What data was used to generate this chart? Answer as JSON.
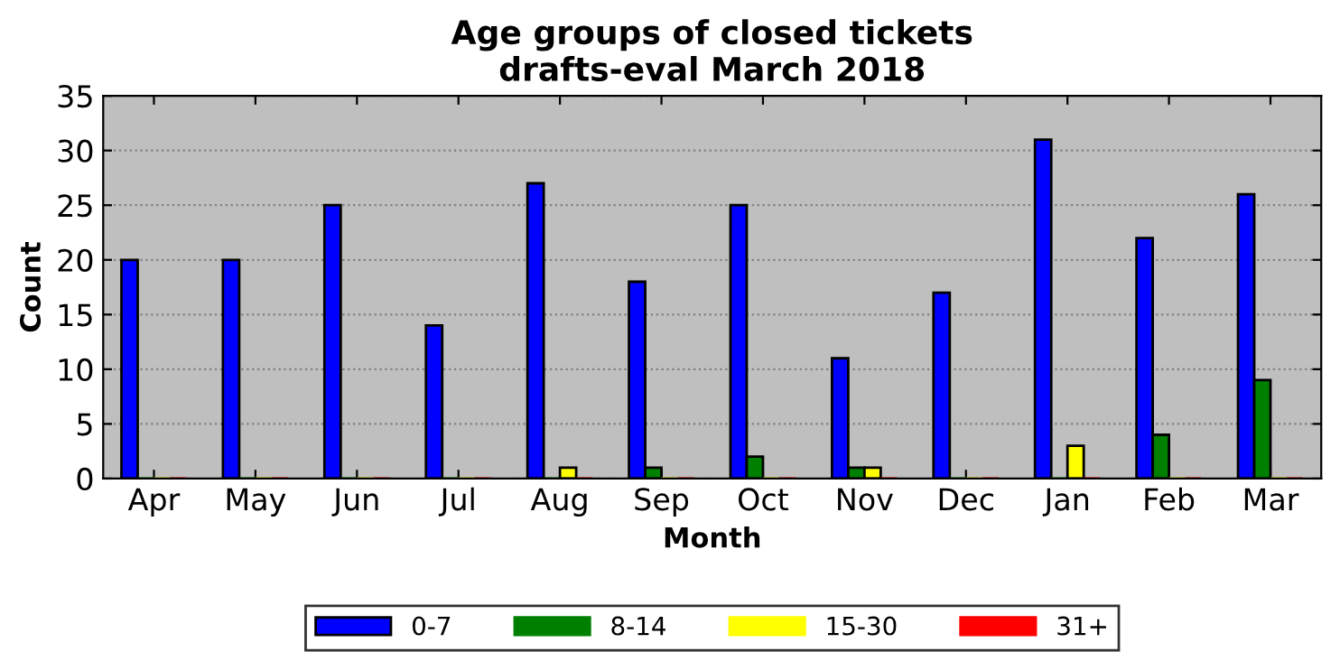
{
  "chart_data": {
    "type": "bar",
    "title": "Age groups of closed tickets\ndrafts-eval March 2018",
    "xlabel": "Month",
    "ylabel": "Count",
    "categories": [
      "Apr",
      "May",
      "Jun",
      "Jul",
      "Aug",
      "Sep",
      "Oct",
      "Nov",
      "Dec",
      "Jan",
      "Feb",
      "Mar"
    ],
    "series": [
      {
        "name": "0-7",
        "color": "#0000ff",
        "values": [
          20,
          20,
          25,
          14,
          27,
          18,
          25,
          11,
          17,
          31,
          22,
          26
        ]
      },
      {
        "name": "8-14",
        "color": "#008000",
        "values": [
          0,
          0,
          0,
          0,
          0,
          1,
          2,
          1,
          0,
          0,
          4,
          9
        ]
      },
      {
        "name": "15-30",
        "color": "#ffff00",
        "values": [
          0,
          0,
          0,
          0,
          1,
          0,
          0,
          1,
          0,
          3,
          0,
          0
        ]
      },
      {
        "name": "31+",
        "color": "#ff0000",
        "values": [
          0,
          0,
          0,
          0,
          0,
          0,
          0,
          0,
          0,
          0,
          0,
          0
        ]
      }
    ],
    "ylim": [
      0,
      35
    ],
    "yticks": [
      0,
      5,
      10,
      15,
      20,
      25,
      30,
      35
    ],
    "grid": "y",
    "legend": "bottom"
  }
}
